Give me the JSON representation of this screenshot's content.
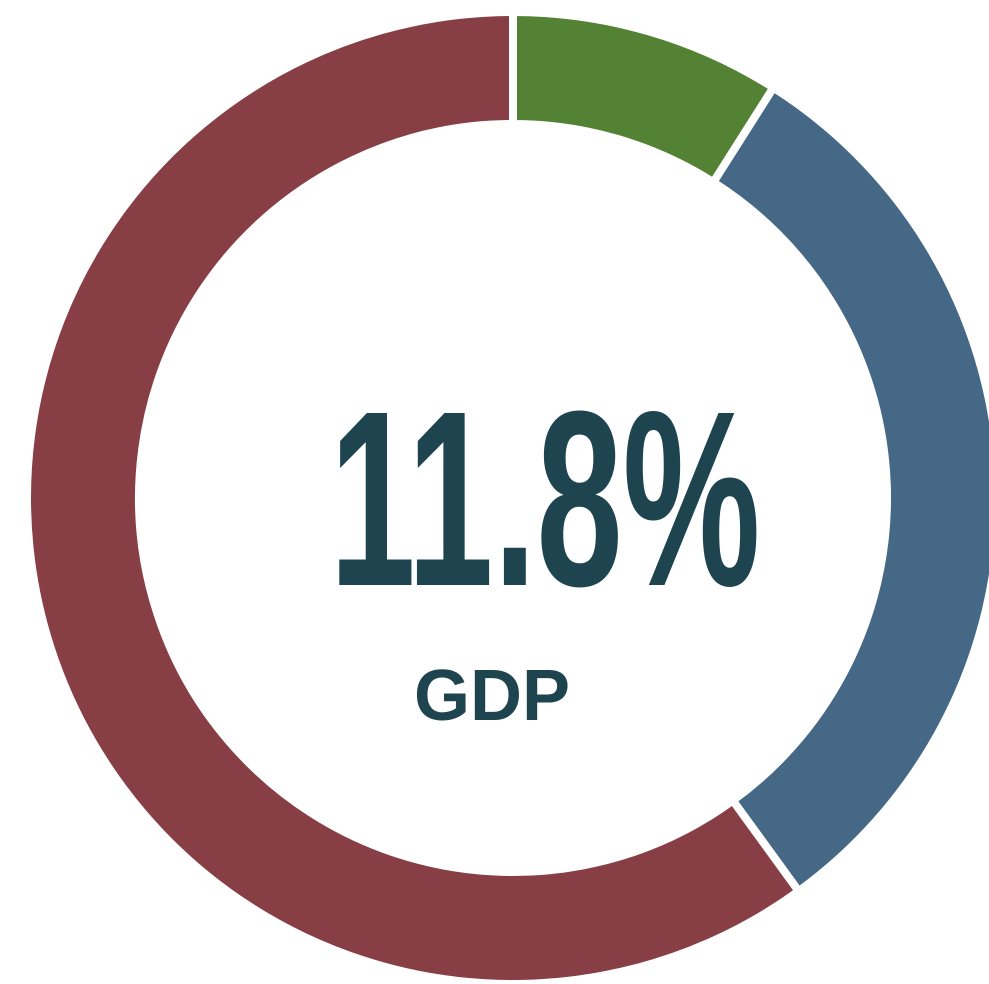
{
  "chart_data": {
    "type": "donut",
    "center_label": "11.8%",
    "center_sublabel": "GDP",
    "values": [
      9,
      31,
      60
    ],
    "colors": [
      "#548235",
      "#456887",
      "#873f45"
    ]
  }
}
